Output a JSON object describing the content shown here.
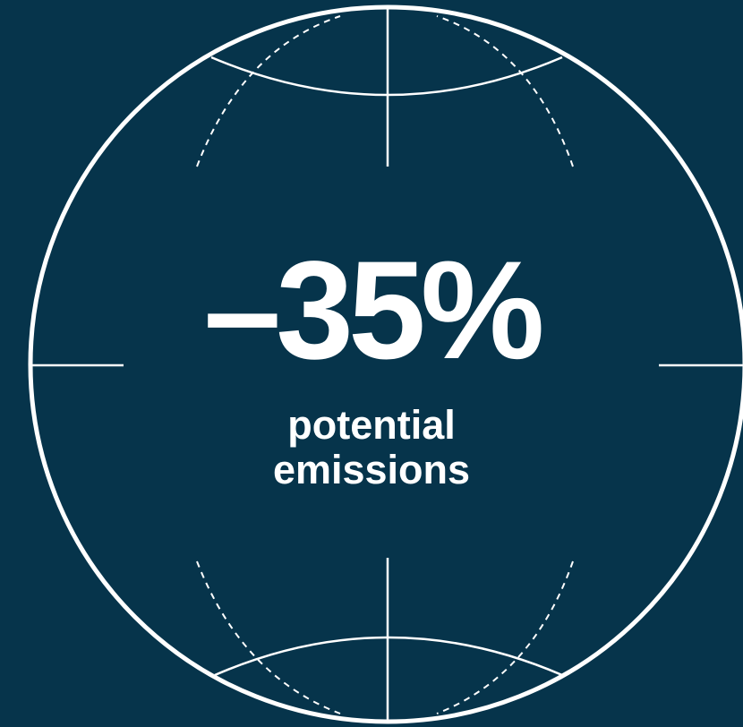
{
  "stat": {
    "value": "–35%",
    "label_line1": "potential",
    "label_line2": "emissions"
  },
  "colors": {
    "background": "#06344b",
    "foreground": "#ffffff"
  },
  "icon": "globe-icon"
}
